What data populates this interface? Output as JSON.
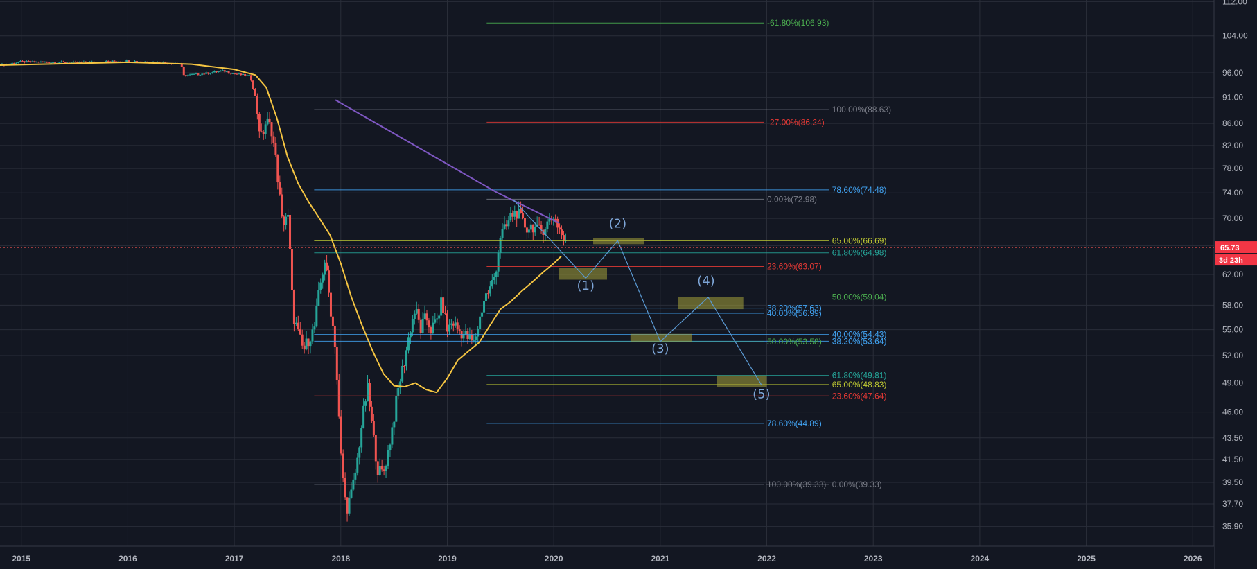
{
  "chart_data": {
    "type": "candlestick",
    "x_axis": {
      "ticks": [
        "2015",
        "2016",
        "2017",
        "2018",
        "2019",
        "2020",
        "2021",
        "2022",
        "2023",
        "2024",
        "2025",
        "2026"
      ],
      "range": [
        2014.8,
        2026.2
      ]
    },
    "y_axis": {
      "scale": "log",
      "ticks": [
        112.0,
        104.0,
        96.0,
        91.0,
        86.0,
        82.0,
        78.0,
        74.0,
        70.0,
        66.0,
        62.0,
        58.0,
        55.0,
        52.0,
        49.0,
        46.0,
        43.5,
        41.5,
        39.5,
        37.7,
        35.9
      ],
      "tick_labels": [
        "112.00",
        "104.00",
        "96.00",
        "91.00",
        "86.00",
        "82.00",
        "78.00",
        "74.00",
        "70.00",
        "66.00",
        "62.00",
        "58.00",
        "55.00",
        "52.00",
        "49.00",
        "46.00",
        "43.50",
        "41.50",
        "39.50",
        "37.70",
        "35.90"
      ],
      "range": [
        34.4,
        112.4
      ]
    },
    "grid": true,
    "last_price": {
      "value": 65.73,
      "label": "65.73",
      "countdown": "3d 23h"
    },
    "price_series": {
      "name": "",
      "points": [
        [
          2014.8,
          97.6
        ],
        [
          2015.0,
          98.3
        ],
        [
          2015.5,
          98.1
        ],
        [
          2016.0,
          98.5
        ],
        [
          2016.3,
          98.2
        ],
        [
          2016.5,
          97.9
        ],
        [
          2016.52,
          95.4
        ],
        [
          2016.7,
          95.8
        ],
        [
          2016.9,
          96.4
        ],
        [
          2017.0,
          95.8
        ],
        [
          2017.15,
          95.3
        ],
        [
          2017.2,
          91.0
        ],
        [
          2017.25,
          83.0
        ],
        [
          2017.3,
          86.5
        ],
        [
          2017.35,
          85.0
        ],
        [
          2017.4,
          78.0
        ],
        [
          2017.45,
          69.0
        ],
        [
          2017.5,
          71.0
        ],
        [
          2017.52,
          66.0
        ],
        [
          2017.55,
          57.0
        ],
        [
          2017.6,
          54.5
        ],
        [
          2017.65,
          52.5
        ],
        [
          2017.7,
          54.0
        ],
        [
          2017.75,
          55.0
        ],
        [
          2017.8,
          60.0
        ],
        [
          2017.85,
          64.0
        ],
        [
          2017.9,
          58.0
        ],
        [
          2017.95,
          53.0
        ],
        [
          2017.97,
          48.0
        ],
        [
          2018.0,
          42.0
        ],
        [
          2018.05,
          37.2
        ],
        [
          2018.1,
          38.5
        ],
        [
          2018.15,
          41.0
        ],
        [
          2018.2,
          45.0
        ],
        [
          2018.25,
          48.5
        ],
        [
          2018.3,
          44.0
        ],
        [
          2018.35,
          40.5
        ],
        [
          2018.4,
          40.3
        ],
        [
          2018.45,
          42.5
        ],
        [
          2018.5,
          45.5
        ],
        [
          2018.55,
          49.0
        ],
        [
          2018.6,
          51.5
        ],
        [
          2018.65,
          55.0
        ],
        [
          2018.7,
          57.5
        ],
        [
          2018.75,
          55.0
        ],
        [
          2018.8,
          56.5
        ],
        [
          2018.85,
          55.0
        ],
        [
          2018.9,
          56.0
        ],
        [
          2018.95,
          58.5
        ],
        [
          2019.0,
          55.0
        ],
        [
          2019.05,
          56.0
        ],
        [
          2019.1,
          55.0
        ],
        [
          2019.15,
          54.5
        ],
        [
          2019.2,
          54.0
        ],
        [
          2019.25,
          53.4
        ],
        [
          2019.3,
          56.0
        ],
        [
          2019.35,
          59.0
        ],
        [
          2019.4,
          60.0
        ],
        [
          2019.45,
          62.0
        ],
        [
          2019.5,
          67.5
        ],
        [
          2019.55,
          68.5
        ],
        [
          2019.6,
          70.5
        ],
        [
          2019.65,
          71.0
        ],
        [
          2019.7,
          69.5
        ],
        [
          2019.75,
          68.5
        ],
        [
          2019.8,
          69.0
        ],
        [
          2019.85,
          68.0
        ],
        [
          2019.9,
          68.5
        ],
        [
          2019.95,
          69.5
        ],
        [
          2020.0,
          70.5
        ],
        [
          2020.05,
          68.5
        ],
        [
          2020.1,
          66.5
        ],
        [
          2020.13,
          65.7
        ]
      ]
    },
    "moving_average": {
      "color": "#f5c542",
      "points": [
        [
          2014.8,
          97.6
        ],
        [
          2016.0,
          98.2
        ],
        [
          2016.6,
          97.8
        ],
        [
          2017.0,
          96.7
        ],
        [
          2017.2,
          95.5
        ],
        [
          2017.3,
          93.0
        ],
        [
          2017.4,
          87.0
        ],
        [
          2017.5,
          80.0
        ],
        [
          2017.6,
          75.5
        ],
        [
          2017.7,
          72.5
        ],
        [
          2017.8,
          70.0
        ],
        [
          2017.9,
          67.5
        ],
        [
          2018.0,
          63.5
        ],
        [
          2018.1,
          59.0
        ],
        [
          2018.2,
          55.5
        ],
        [
          2018.3,
          52.5
        ],
        [
          2018.4,
          50.0
        ],
        [
          2018.5,
          48.7
        ],
        [
          2018.6,
          48.6
        ],
        [
          2018.7,
          49.0
        ],
        [
          2018.8,
          48.3
        ],
        [
          2018.9,
          48.0
        ],
        [
          2019.0,
          49.5
        ],
        [
          2019.1,
          51.5
        ],
        [
          2019.2,
          52.5
        ],
        [
          2019.3,
          53.5
        ],
        [
          2019.4,
          55.5
        ],
        [
          2019.5,
          57.5
        ],
        [
          2019.6,
          58.5
        ],
        [
          2019.7,
          59.8
        ],
        [
          2019.8,
          61.0
        ],
        [
          2019.9,
          62.3
        ],
        [
          2020.0,
          63.5
        ],
        [
          2020.07,
          64.5
        ]
      ]
    },
    "trendline": {
      "color": "#7e57c2",
      "points": [
        [
          2017.95,
          90.5
        ],
        [
          2019.45,
          74.2
        ],
        [
          2020.05,
          69.3
        ]
      ]
    },
    "fib_levels": [
      {
        "label": "-61.80%(106.93)",
        "price": 106.93,
        "color": "#4caf50",
        "x_start": 2019.37,
        "x_end": 2021.99,
        "label_x": 2021.99
      },
      {
        "label": "100.00%(88.63)",
        "price": 88.63,
        "color": "#787b86",
        "x_start": 2017.75,
        "x_end": 2022.6,
        "label_x": 2022.6
      },
      {
        "label": "-27.00%(86.24)",
        "price": 86.24,
        "color": "#e53935",
        "x_start": 2019.37,
        "x_end": 2021.99,
        "label_x": 2021.99
      },
      {
        "label": "78.60%(74.48)",
        "price": 74.48,
        "color": "#42a5f5",
        "x_start": 2017.75,
        "x_end": 2022.6,
        "label_x": 2022.6
      },
      {
        "label": "0.00%(72.98)",
        "price": 72.98,
        "color": "#787b86",
        "x_start": 2019.37,
        "x_end": 2021.99,
        "label_x": 2021.99
      },
      {
        "label": "65.00%(66.69)",
        "price": 66.69,
        "color": "#c0ca33",
        "x_start": 2017.75,
        "x_end": 2022.6,
        "label_x": 2022.6
      },
      {
        "label": "61.80%(64.98)",
        "price": 64.98,
        "color": "#26a69a",
        "x_start": 2017.75,
        "x_end": 2022.6,
        "label_x": 2022.6
      },
      {
        "label": "23.60%(63.07)",
        "price": 63.07,
        "color": "#e53935",
        "x_start": 2019.37,
        "x_end": 2021.99,
        "label_x": 2021.99
      },
      {
        "label": "50.00%(59.04)",
        "price": 59.04,
        "color": "#4caf50",
        "x_start": 2017.75,
        "x_end": 2022.6,
        "label_x": 2022.6
      },
      {
        "label": "38.20%(57.63)",
        "price": 57.63,
        "color": "#42a5f5",
        "x_start": 2019.37,
        "x_end": 2021.99,
        "label_x": 2021.99
      },
      {
        "label": "40.00%(56.99)",
        "price": 56.99,
        "color": "#42a5f5",
        "x_start": 2019.37,
        "x_end": 2021.99,
        "label_x": 2021.99
      },
      {
        "label": "40.00%(54.43)",
        "price": 54.43,
        "color": "#42a5f5",
        "x_start": 2017.75,
        "x_end": 2022.6,
        "label_x": 2022.6
      },
      {
        "label": "38.20%(53.64)",
        "price": 53.64,
        "color": "#42a5f5",
        "x_start": 2017.75,
        "x_end": 2022.6,
        "label_x": 2022.6
      },
      {
        "label": "50.00%(53.58)",
        "price": 53.58,
        "color": "#4caf50",
        "x_start": 2019.37,
        "x_end": 2021.99,
        "label_x": 2021.99
      },
      {
        "label": "61.80%(49.81)",
        "price": 49.81,
        "color": "#26a69a",
        "x_start": 2019.37,
        "x_end": 2022.6,
        "label_x": 2022.6
      },
      {
        "label": "65.00%(48.83)",
        "price": 48.83,
        "color": "#c0ca33",
        "x_start": 2019.37,
        "x_end": 2022.6,
        "label_x": 2022.6
      },
      {
        "label": "23.60%(47.64)",
        "price": 47.64,
        "color": "#e53935",
        "x_start": 2017.75,
        "x_end": 2022.6,
        "label_x": 2022.6
      },
      {
        "label": "78.60%(44.89)",
        "price": 44.89,
        "color": "#42a5f5",
        "x_start": 2019.37,
        "x_end": 2021.99,
        "label_x": 2021.99
      },
      {
        "label": "100.00%(39.33)",
        "price": 39.33,
        "color": "#787b86",
        "x_start": 2017.75,
        "x_end": 2021.99,
        "label_x": 2021.99
      },
      {
        "label": "0.00%(39.33)",
        "price": 39.33,
        "color": "#787b86",
        "x_start": 2021.99,
        "x_end": 2022.6,
        "label_x": 2022.6
      }
    ],
    "zones": [
      {
        "x": [
          2020.05,
          2020.5
        ],
        "y": [
          61.3,
          62.9
        ]
      },
      {
        "x": [
          2020.37,
          2020.85
        ],
        "y": [
          66.2,
          67.1
        ]
      },
      {
        "x": [
          2020.72,
          2021.3
        ],
        "y": [
          53.6,
          54.5
        ]
      },
      {
        "x": [
          2021.17,
          2021.78
        ],
        "y": [
          57.5,
          59.0
        ]
      },
      {
        "x": [
          2021.53,
          2022.0
        ],
        "y": [
          48.6,
          49.8
        ]
      }
    ],
    "wave_path": [
      [
        2019.62,
        72.9
      ],
      [
        2020.3,
        61.5
      ],
      [
        2020.6,
        66.7
      ],
      [
        2021.0,
        53.6
      ],
      [
        2021.45,
        59.0
      ],
      [
        2021.95,
        48.8
      ]
    ],
    "wave_labels": [
      {
        "label": "(1)",
        "x": 2020.3,
        "y": 60.0
      },
      {
        "label": "(2)",
        "x": 2020.6,
        "y": 68.6
      },
      {
        "label": "(3)",
        "x": 2021.0,
        "y": 52.3
      },
      {
        "label": "(4)",
        "x": 2021.43,
        "y": 60.6
      },
      {
        "label": "(5)",
        "x": 2021.95,
        "y": 47.4
      }
    ]
  },
  "colors": {
    "background": "#131722",
    "grid": "#2a2e39",
    "up": "#26a69a",
    "down": "#ef5350",
    "wave": "#5b9bd5",
    "zone": "#a5a23a"
  }
}
